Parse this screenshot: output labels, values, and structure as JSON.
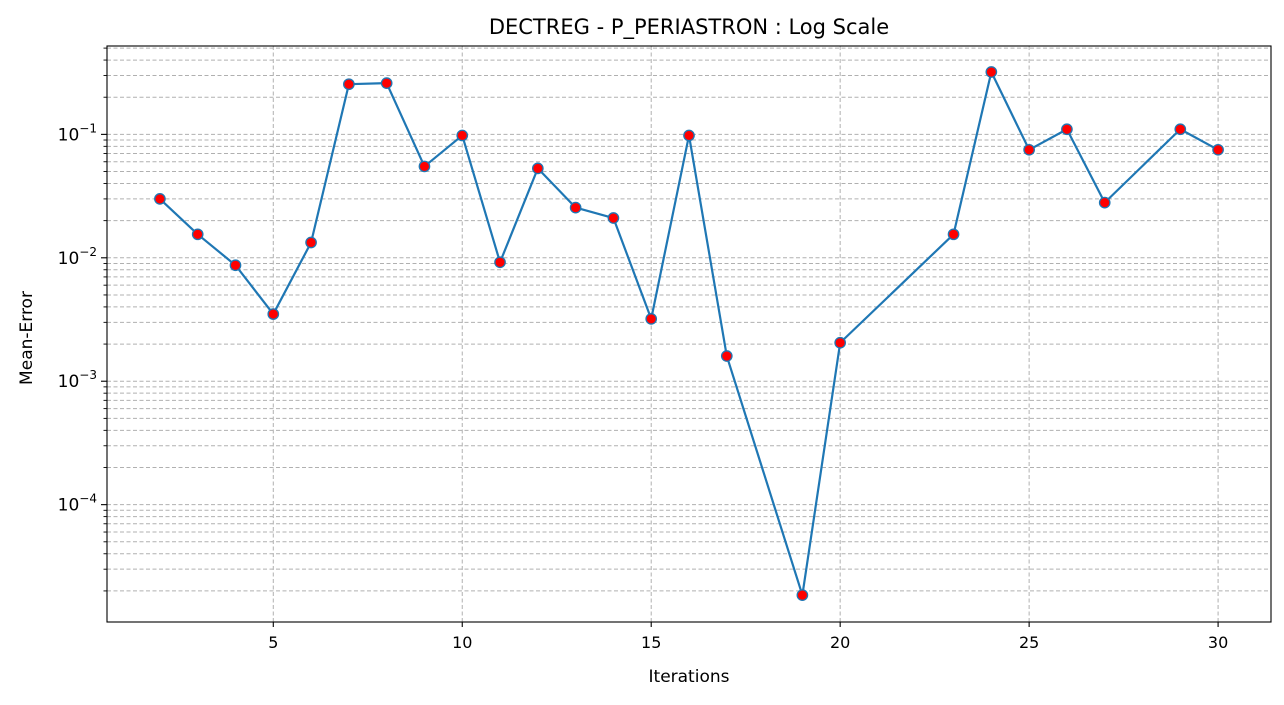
{
  "chart_data": {
    "type": "line",
    "title": "DECTREG - P_PERIASTRON : Log Scale",
    "xlabel": "Iterations",
    "ylabel": "Mean-Error",
    "xlim": [
      0.6,
      31.4
    ],
    "ylim": [
      1.12e-05,
      0.52
    ],
    "yscale": "log",
    "grid": true,
    "x_ticks": [
      5,
      10,
      15,
      20,
      25,
      30
    ],
    "y_ticks": [
      {
        "value": 0.0001,
        "base": "10",
        "exp": "−4"
      },
      {
        "value": 0.001,
        "base": "10",
        "exp": "−3"
      },
      {
        "value": 0.01,
        "base": "10",
        "exp": "−2"
      },
      {
        "value": 0.1,
        "base": "10",
        "exp": "−1"
      }
    ],
    "colors": {
      "line": "#1f77b4",
      "marker_face": "#ff0000",
      "marker_edge": "#1f77b4",
      "grid": "#b0b0b0"
    },
    "series": [
      {
        "x": [
          2,
          3,
          4,
          5,
          6,
          7,
          8,
          9,
          10,
          11,
          12,
          13,
          14,
          15,
          16,
          17,
          19,
          20,
          23,
          24,
          25,
          26,
          27,
          29,
          30
        ],
        "y": [
          0.03,
          0.0155,
          0.0087,
          0.0035,
          0.0133,
          0.255,
          0.26,
          0.055,
          0.098,
          0.0092,
          0.053,
          0.0255,
          0.021,
          0.0032,
          0.098,
          0.0016,
          1.85e-05,
          0.00205,
          0.0155,
          0.32,
          0.075,
          0.11,
          0.028,
          0.11,
          0.075
        ]
      }
    ]
  }
}
